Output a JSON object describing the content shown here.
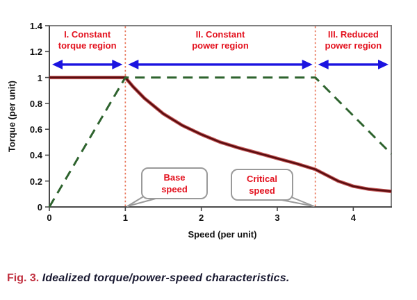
{
  "figure": {
    "caption_label": "Fig. 3.",
    "caption_text": "Idealized torque/power-speed characteristics."
  },
  "chart_data": {
    "type": "line",
    "title": "",
    "xlabel": "Speed (per unit)",
    "ylabel": "Torque (per unit)",
    "xlim": [
      0,
      4.5
    ],
    "ylim": [
      0,
      1.4
    ],
    "grid": false,
    "legend": "none",
    "x_tick_values": [
      0,
      1,
      2,
      3,
      4
    ],
    "x_tick_labels": [
      "0",
      "1",
      "2",
      "3",
      "4"
    ],
    "y_tick_values": [
      0,
      0.2,
      0.4,
      0.6,
      0.8,
      1,
      1.2,
      1.4
    ],
    "y_tick_labels": [
      "0",
      "0.2",
      "0.4",
      "0.6",
      "0.8",
      "1",
      "1.2",
      "1.4"
    ],
    "series": [
      {
        "name": "torque",
        "style": "solid",
        "color": "#5a0c0e",
        "points": [
          [
            0,
            1.0
          ],
          [
            1,
            1.0
          ],
          [
            1.1,
            0.93
          ],
          [
            1.25,
            0.84
          ],
          [
            1.5,
            0.72
          ],
          [
            1.75,
            0.63
          ],
          [
            2,
            0.56
          ],
          [
            2.25,
            0.5
          ],
          [
            2.5,
            0.455
          ],
          [
            2.75,
            0.415
          ],
          [
            3,
            0.375
          ],
          [
            3.25,
            0.335
          ],
          [
            3.5,
            0.29
          ],
          [
            3.65,
            0.245
          ],
          [
            3.8,
            0.2
          ],
          [
            4,
            0.16
          ],
          [
            4.2,
            0.138
          ],
          [
            4.5,
            0.12
          ]
        ]
      },
      {
        "name": "power",
        "style": "dashed",
        "color": "#2e632e",
        "points": [
          [
            0,
            0
          ],
          [
            1,
            1
          ],
          [
            3.5,
            1
          ],
          [
            4.5,
            0.41
          ]
        ]
      }
    ],
    "reference_lines": [
      {
        "x": 1,
        "name": "base-speed"
      },
      {
        "x": 3.5,
        "name": "critical-speed"
      }
    ],
    "regions": [
      {
        "line1": "I. Constant",
        "line2": "torque region",
        "start": 0,
        "end": 1,
        "arrow_y": 1.1
      },
      {
        "line1": "II. Constant",
        "line2": "power region",
        "start": 1,
        "end": 3.5,
        "arrow_y": 1.1
      },
      {
        "line1": "III. Reduced",
        "line2": "power region",
        "start": 3.5,
        "end": 4.5,
        "arrow_y": 1.1
      }
    ],
    "annotations": [
      {
        "line1": "Base",
        "line2": "speed",
        "anchor_x": 1,
        "anchor_y": 0
      },
      {
        "line1": "Critical",
        "line2": "speed",
        "anchor_x": 3.5,
        "anchor_y": 0
      }
    ],
    "colors": {
      "torque_line": "#5a0c0e",
      "torque_glow": "#b93a3a",
      "power_line": "#2e632e",
      "region_text": "#e3121f",
      "annotation_text": "#e3121f",
      "arrows": "#1b13e0",
      "reference_dashed": "#e8765a",
      "axis_border": "#808080",
      "axis_line": "#4a4a4a",
      "caption_label": "#c13040",
      "caption_text": "#181830"
    }
  }
}
